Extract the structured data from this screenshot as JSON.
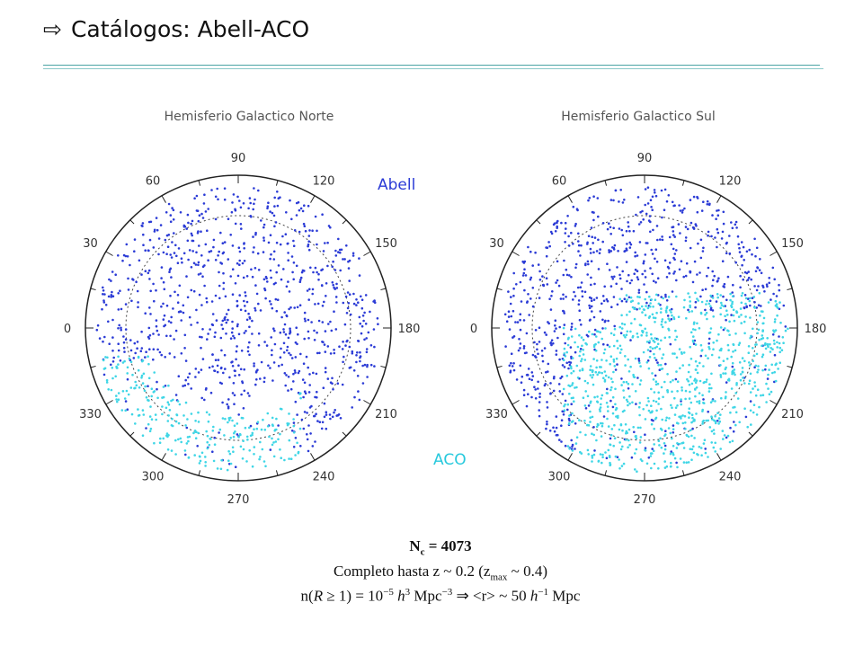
{
  "slide": {
    "title_arrow": "⇨",
    "title": "Catálogos: Abell-ACO"
  },
  "legend": {
    "abell": "Abell",
    "aco": "ACO"
  },
  "colors": {
    "abell": "#2b3bd6",
    "aco": "#3fd6e6",
    "rule": "#4aa3a3"
  },
  "plots": [
    {
      "title": "Hemisferio Galactico Norte",
      "labels": [
        "90",
        "120",
        "150",
        "180",
        "210",
        "240",
        "270",
        "300",
        "330",
        "0",
        "30",
        "60"
      ],
      "clusters": {
        "abell_count": 900,
        "aco_count": 260
      }
    },
    {
      "title": "Hemisferio Galactico Sul",
      "labels": [
        "90",
        "60",
        "30",
        "0",
        "330",
        "300",
        "270",
        "240",
        "210",
        "180",
        "150",
        "120"
      ],
      "clusters": {
        "abell_count": 760,
        "aco_count": 900
      }
    }
  ],
  "caption": {
    "nc_pre": "N",
    "nc_sub": "c",
    "nc_post": " = 4073",
    "complete_pre": "Completo hasta z ~ 0.2 (z",
    "complete_sub": "max",
    "complete_post": " ~ 0.4)",
    "density_1": "n(",
    "density_R": "R",
    "density_2": " ≥ 1) = 10",
    "density_exp1": "−5",
    "density_h1": "h",
    "density_exp2": "3",
    "density_3": " Mpc",
    "density_exp3": "−3",
    "density_4": "  ⇒  <r> ~ 50 ",
    "density_h2": "h",
    "density_exp4": "−1",
    "density_5": " Mpc"
  }
}
